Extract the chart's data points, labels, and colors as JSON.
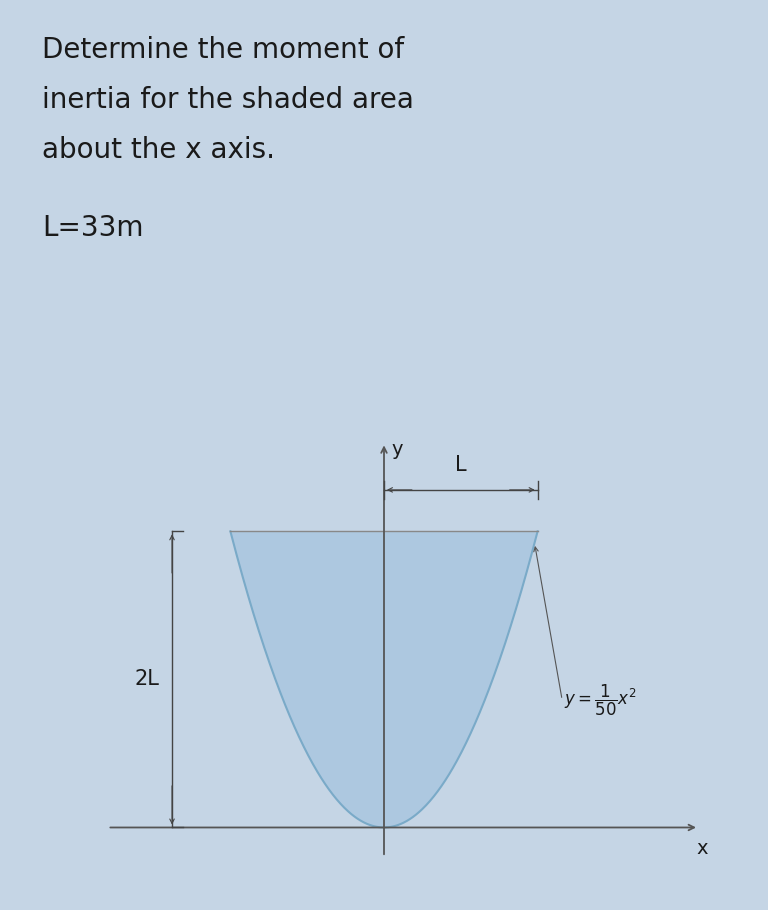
{
  "title_lines": [
    "Determine the moment of",
    "inertia for the shaded area",
    "about the x axis."
  ],
  "param_line": "L=33m",
  "background_color": "#c5d5e5",
  "diagram_bg": "#ffffff",
  "shaded_color": "#adc8e0",
  "shaded_edge_color": "#7aaac8",
  "text_color": "#1a1a1a",
  "axis_color": "#555555",
  "dim_color": "#444444",
  "x_label": "x",
  "y_label": "y",
  "L_label": "L",
  "twoL_label": "2L",
  "L": 1.0,
  "twoL": 2.0,
  "x_min": -1.9,
  "x_max": 2.1,
  "y_min": -0.25,
  "y_max": 2.7,
  "title_fontsize": 20,
  "label_fontsize": 14,
  "dim_fontsize": 15
}
